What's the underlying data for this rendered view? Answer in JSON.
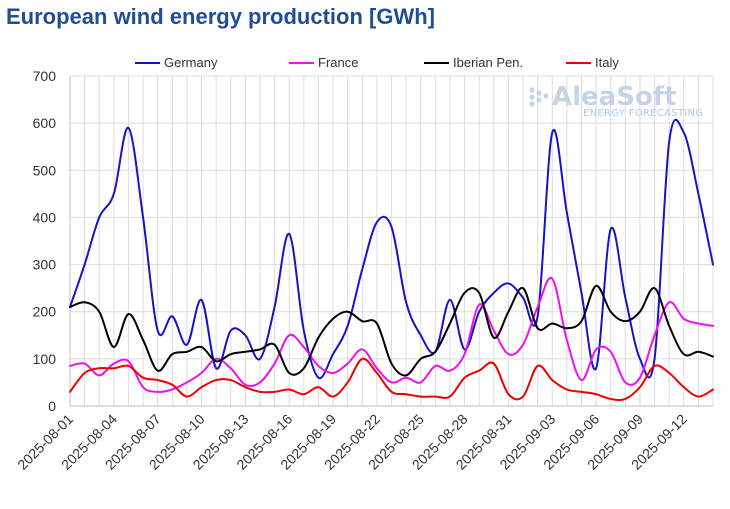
{
  "chart_data": {
    "type": "line",
    "title": "European wind energy production [GWh]",
    "xlabel": "",
    "ylabel": "",
    "ylim": [
      0,
      700
    ],
    "yticks": [
      0,
      100,
      200,
      300,
      400,
      500,
      600,
      700
    ],
    "xticks": [
      "2025-08-01",
      "2025-08-04",
      "2025-08-07",
      "2025-08-10",
      "2025-08-13",
      "2025-08-16",
      "2025-08-19",
      "2025-08-22",
      "2025-08-25",
      "2025-08-28",
      "2025-08-31",
      "2025-09-03",
      "2025-09-06",
      "2025-09-09",
      "2025-09-12"
    ],
    "x": [
      "2025-08-01",
      "2025-08-02",
      "2025-08-03",
      "2025-08-04",
      "2025-08-05",
      "2025-08-06",
      "2025-08-07",
      "2025-08-08",
      "2025-08-09",
      "2025-08-10",
      "2025-08-11",
      "2025-08-12",
      "2025-08-13",
      "2025-08-14",
      "2025-08-15",
      "2025-08-16",
      "2025-08-17",
      "2025-08-18",
      "2025-08-19",
      "2025-08-20",
      "2025-08-21",
      "2025-08-22",
      "2025-08-23",
      "2025-08-24",
      "2025-08-25",
      "2025-08-26",
      "2025-08-27",
      "2025-08-28",
      "2025-08-29",
      "2025-08-30",
      "2025-08-31",
      "2025-09-01",
      "2025-09-02",
      "2025-09-03",
      "2025-09-04",
      "2025-09-05",
      "2025-09-06",
      "2025-09-07",
      "2025-09-08",
      "2025-09-09",
      "2025-09-10",
      "2025-09-11",
      "2025-09-12",
      "2025-09-13",
      "2025-09-14"
    ],
    "grid": true,
    "legend_position": "top",
    "series": [
      {
        "name": "Germany",
        "color": "#1414c8",
        "values": [
          210,
          300,
          400,
          450,
          590,
          400,
          160,
          190,
          130,
          225,
          80,
          160,
          150,
          100,
          210,
          365,
          160,
          60,
          110,
          170,
          290,
          390,
          380,
          220,
          150,
          115,
          225,
          120,
          200,
          240,
          260,
          230,
          190,
          580,
          410,
          240,
          80,
          375,
          230,
          100,
          100,
          560,
          580,
          450,
          300
        ]
      },
      {
        "name": "France",
        "color": "#ee11ee",
        "values": [
          85,
          90,
          65,
          90,
          95,
          40,
          30,
          35,
          50,
          70,
          100,
          80,
          45,
          50,
          90,
          150,
          125,
          85,
          70,
          90,
          120,
          80,
          50,
          60,
          50,
          85,
          75,
          110,
          215,
          160,
          110,
          130,
          210,
          270,
          140,
          55,
          120,
          115,
          50,
          60,
          150,
          220,
          185,
          175,
          170
        ]
      },
      {
        "name": "Iberian Pen.",
        "color": "#000000",
        "values": [
          210,
          220,
          200,
          125,
          195,
          140,
          75,
          110,
          115,
          125,
          95,
          110,
          115,
          120,
          130,
          70,
          80,
          145,
          185,
          200,
          180,
          175,
          90,
          65,
          100,
          115,
          175,
          240,
          240,
          145,
          200,
          250,
          165,
          175,
          165,
          180,
          255,
          200,
          180,
          200,
          250,
          170,
          110,
          115,
          105
        ]
      },
      {
        "name": "Italy",
        "color": "#ee0000",
        "values": [
          30,
          70,
          80,
          80,
          85,
          60,
          55,
          45,
          20,
          40,
          55,
          55,
          40,
          30,
          30,
          35,
          25,
          40,
          20,
          50,
          100,
          70,
          30,
          25,
          20,
          20,
          20,
          60,
          75,
          90,
          25,
          20,
          85,
          55,
          35,
          30,
          25,
          15,
          15,
          40,
          85,
          70,
          40,
          20,
          35
        ]
      }
    ]
  },
  "watermark": {
    "brand": "AleaSoft",
    "tagline": "ENERGY FORECASTING"
  }
}
